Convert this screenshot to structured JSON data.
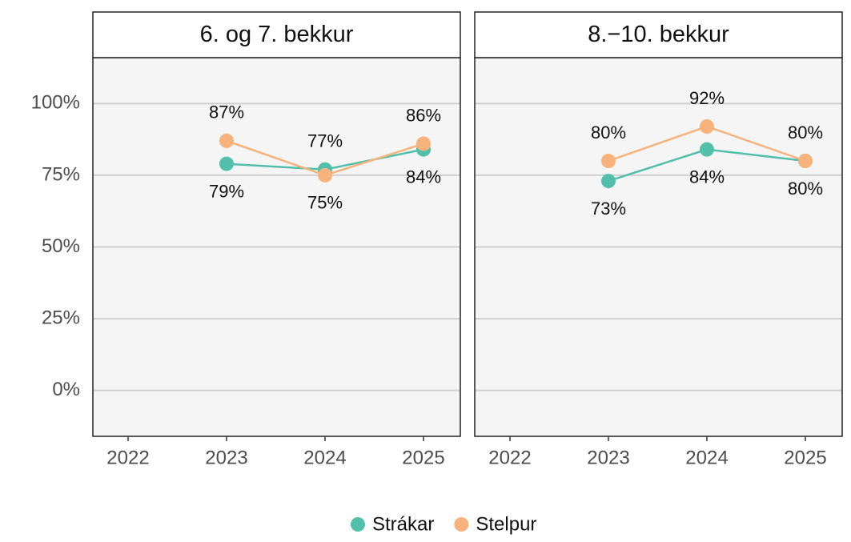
{
  "chart_data": [
    {
      "type": "line",
      "title": "6. og 7. bekkur",
      "categories": [
        "2022",
        "2023",
        "2024",
        "2025"
      ],
      "series": [
        {
          "name": "Strákar",
          "color": "#52bfaa",
          "values": [
            null,
            79,
            77,
            84
          ],
          "value_labels": [
            null,
            "79%",
            "77%",
            "84%"
          ]
        },
        {
          "name": "Stelpur",
          "color": "#f8b27c",
          "values": [
            null,
            87,
            75,
            86
          ],
          "value_labels": [
            null,
            "87%",
            "75%",
            "86%"
          ]
        }
      ],
      "ylim": [
        -16,
        116
      ],
      "yticks": [
        {
          "value": 0,
          "label": "0%"
        },
        {
          "value": 25,
          "label": "25%"
        },
        {
          "value": 50,
          "label": "50%"
        },
        {
          "value": 75,
          "label": "75%"
        },
        {
          "value": 100,
          "label": "100%"
        }
      ],
      "grid": true,
      "legend": "bottom"
    },
    {
      "type": "line",
      "title": "8.−10. bekkur",
      "categories": [
        "2022",
        "2023",
        "2024",
        "2025"
      ],
      "series": [
        {
          "name": "Strákar",
          "color": "#52bfaa",
          "values": [
            null,
            73,
            84,
            80
          ],
          "value_labels": [
            null,
            "73%",
            "84%",
            "80%"
          ]
        },
        {
          "name": "Stelpur",
          "color": "#f8b27c",
          "values": [
            null,
            80,
            92,
            80
          ],
          "value_labels": [
            null,
            "80%",
            "92%",
            "80%"
          ]
        }
      ],
      "ylim": [
        -16,
        116
      ],
      "yticks": [
        {
          "value": 0,
          "label": "0%"
        },
        {
          "value": 25,
          "label": "25%"
        },
        {
          "value": 50,
          "label": "50%"
        },
        {
          "value": 75,
          "label": "75%"
        },
        {
          "value": 100,
          "label": "100%"
        }
      ],
      "grid": true,
      "legend": "bottom"
    }
  ]
}
